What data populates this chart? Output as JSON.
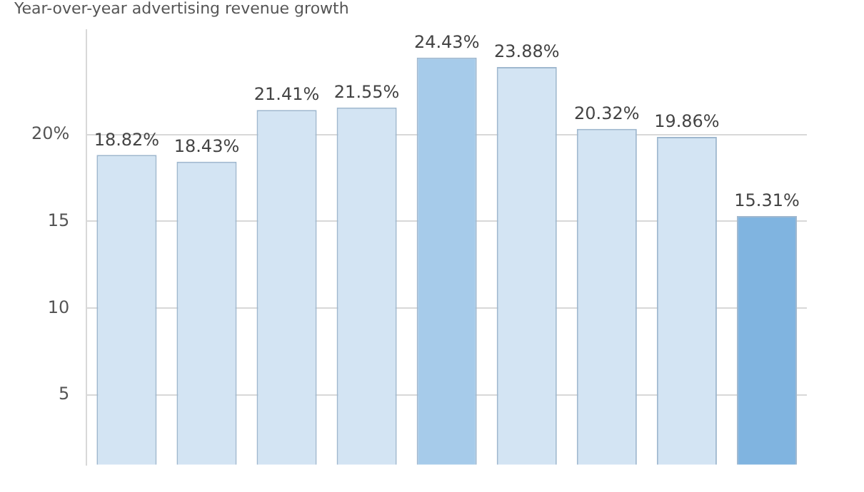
{
  "chart_data": {
    "type": "bar",
    "title": "Year-over-year advertising revenue growth",
    "categories": [
      null,
      null,
      null,
      null,
      null,
      null,
      null,
      null,
      null
    ],
    "values": [
      18.82,
      18.43,
      21.41,
      21.55,
      24.43,
      23.88,
      20.32,
      19.86,
      15.31
    ],
    "value_labels": [
      "18.82%",
      "18.43%",
      "21.41%",
      "21.55%",
      "24.43%",
      "23.88%",
      "20.32%",
      "19.86%",
      "15.31%"
    ],
    "colors": [
      "#d3e4f3",
      "#d3e4f3",
      "#d3e4f3",
      "#d3e4f3",
      "#a6cbea",
      "#d3e4f3",
      "#d3e4f3",
      "#d3e4f3",
      "#80b4e0"
    ],
    "ylim": [
      1,
      26
    ],
    "yticks": [
      5,
      10,
      15,
      {
        "value": 20,
        "label": "20%"
      }
    ],
    "grid": "y",
    "legend": false
  }
}
